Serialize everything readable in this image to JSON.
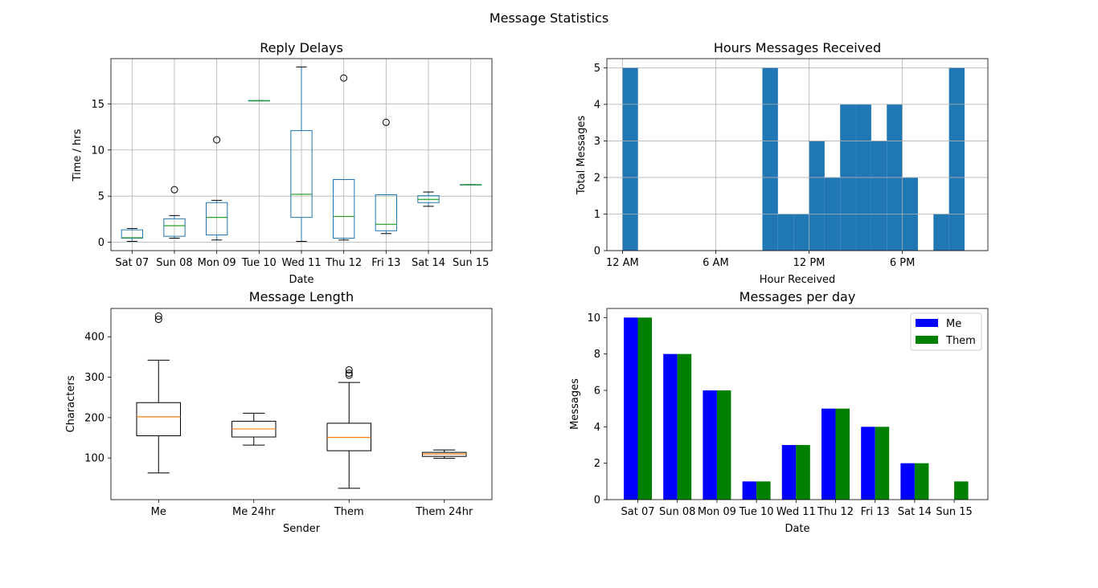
{
  "figure": {
    "title": "Message Statistics"
  },
  "colors": {
    "box_blue": "#1f77b4",
    "median_green": "#2ca02c",
    "median_orange": "#ff7f0e",
    "bar_me": "#0000ff",
    "bar_them": "#008000",
    "grid": "#b0b0b0"
  },
  "chart_data": [
    {
      "id": "reply",
      "type": "boxplot",
      "title": "Reply Delays",
      "xlabel": "Date",
      "ylabel": "Time / hrs",
      "grid": true,
      "ylim": [
        -0.9,
        19.9
      ],
      "yticks": [
        0,
        5,
        10,
        15
      ],
      "categories": [
        "Sat 07",
        "Sun 08",
        "Mon 09",
        "Tue 10",
        "Wed 11",
        "Thu 12",
        "Fri 13",
        "Sat 14",
        "Sun 15"
      ],
      "boxes": [
        {
          "min": 0.1,
          "q1": 0.45,
          "median": 0.5,
          "q3": 1.35,
          "max": 1.5,
          "fliers": []
        },
        {
          "min": 0.45,
          "q1": 0.65,
          "median": 1.8,
          "q3": 2.55,
          "max": 2.9,
          "fliers": [
            5.7
          ]
        },
        {
          "min": 0.25,
          "q1": 0.8,
          "median": 2.7,
          "q3": 4.3,
          "max": 4.55,
          "fliers": [
            11.1
          ]
        },
        {
          "min": 15.35,
          "q1": 15.35,
          "median": 15.35,
          "q3": 15.35,
          "max": 15.35,
          "fliers": []
        },
        {
          "min": 0.1,
          "q1": 2.7,
          "median": 5.2,
          "q3": 12.1,
          "max": 19.0,
          "fliers": []
        },
        {
          "min": 0.25,
          "q1": 0.45,
          "median": 2.8,
          "q3": 6.8,
          "max": 6.8,
          "fliers": [
            17.8
          ]
        },
        {
          "min": 0.95,
          "q1": 1.25,
          "median": 1.95,
          "q3": 5.15,
          "max": 5.15,
          "fliers": [
            13.0
          ]
        },
        {
          "min": 3.9,
          "q1": 4.3,
          "median": 4.65,
          "q3": 5.05,
          "max": 5.45,
          "fliers": []
        },
        {
          "min": 6.25,
          "q1": 6.25,
          "median": 6.25,
          "q3": 6.25,
          "max": 6.25,
          "fliers": []
        }
      ]
    },
    {
      "id": "hours",
      "type": "bar",
      "title": "Hours Messages Received",
      "xlabel": "Hour Received",
      "ylabel": "Total Messages",
      "grid": true,
      "xlim": [
        -1,
        23.5
      ],
      "ylim": [
        0,
        5.25
      ],
      "yticks": [
        0,
        1,
        2,
        3,
        4,
        5
      ],
      "xticks": [
        0,
        6,
        12,
        18
      ],
      "xticklabels": [
        "12 AM",
        "6 AM",
        "12 PM",
        "6 PM"
      ],
      "bin_width": 1,
      "bins": [
        {
          "x": 0,
          "value": 5
        },
        {
          "x": 9,
          "value": 5
        },
        {
          "x": 10,
          "value": 1
        },
        {
          "x": 11,
          "value": 1
        },
        {
          "x": 12,
          "value": 3
        },
        {
          "x": 13,
          "value": 2
        },
        {
          "x": 14,
          "value": 4
        },
        {
          "x": 15,
          "value": 4
        },
        {
          "x": 16,
          "value": 3
        },
        {
          "x": 17,
          "value": 4
        },
        {
          "x": 18,
          "value": 2
        },
        {
          "x": 20,
          "value": 1
        },
        {
          "x": 21,
          "value": 5
        }
      ]
    },
    {
      "id": "length",
      "type": "boxplot",
      "title": "Message Length",
      "xlabel": "Sender",
      "ylabel": "Characters",
      "grid": false,
      "ylim": [
        -3,
        470
      ],
      "yticks": [
        100,
        200,
        300,
        400
      ],
      "categories": [
        "Me",
        "Me 24hr",
        "Them",
        "Them 24hr"
      ],
      "boxes": [
        {
          "min": 63,
          "q1": 155,
          "median": 202,
          "q3": 237,
          "max": 342,
          "fliers": [
            443,
            451
          ]
        },
        {
          "min": 132,
          "q1": 152,
          "median": 172,
          "q3": 191,
          "max": 211,
          "fliers": []
        },
        {
          "min": 25,
          "q1": 118,
          "median": 151,
          "q3": 186,
          "max": 287,
          "fliers": [
            305,
            310,
            318
          ]
        },
        {
          "min": 99,
          "q1": 104,
          "median": 110,
          "q3": 114,
          "max": 120,
          "fliers": []
        }
      ]
    },
    {
      "id": "perday",
      "type": "bar",
      "title": "Messages per day",
      "xlabel": "Date",
      "ylabel": "Messages",
      "grid": false,
      "ylim": [
        0,
        10.5
      ],
      "yticks": [
        0,
        2,
        4,
        6,
        8,
        10
      ],
      "legend": "top-right",
      "categories": [
        "Sat 07",
        "Sun 08",
        "Mon 09",
        "Tue 10",
        "Wed 11",
        "Thu 12",
        "Fri 13",
        "Sat 14",
        "Sun 15"
      ],
      "series": [
        {
          "name": "Me",
          "values": [
            10,
            8,
            6,
            1,
            3,
            5,
            4,
            2,
            0
          ]
        },
        {
          "name": "Them",
          "values": [
            10,
            8,
            6,
            1,
            3,
            5,
            4,
            2,
            1
          ]
        }
      ]
    }
  ]
}
